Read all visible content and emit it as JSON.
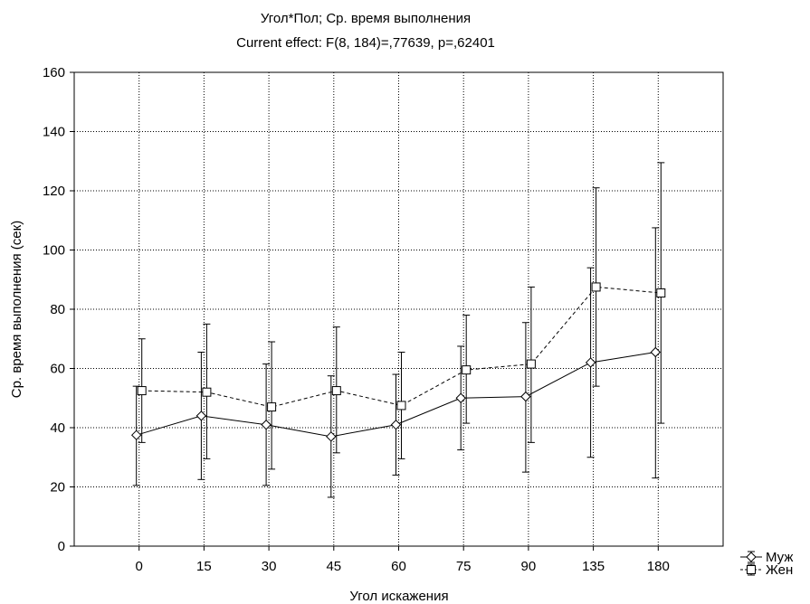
{
  "chart_data": {
    "type": "line",
    "title": "Угол*Пол; Ср. время выполнения",
    "subtitle": "Current effect: F(8, 184)=,77639, p=,62401",
    "xlabel": "Угол искажения",
    "ylabel": "Ср. время выполнения (сек)",
    "categories": [
      "0",
      "15",
      "30",
      "45",
      "60",
      "75",
      "90",
      "135",
      "180"
    ],
    "ylim": [
      0,
      160
    ],
    "yticks": [
      "0",
      "20",
      "40",
      "60",
      "80",
      "100",
      "120",
      "140",
      "160"
    ],
    "grid": true,
    "legend_position": "bottom-right",
    "series": [
      {
        "name": "Муж",
        "marker": "diamond",
        "line_style": "solid",
        "values": [
          37.5,
          44,
          41,
          37,
          41,
          50,
          50.5,
          62,
          65.5
        ],
        "lower": [
          20.5,
          22.5,
          20.5,
          16.5,
          24,
          32.5,
          25,
          30,
          23
        ],
        "upper": [
          54,
          65.5,
          61.5,
          57.5,
          58,
          67.5,
          75.5,
          94,
          107.5
        ]
      },
      {
        "name": "Жен",
        "marker": "square",
        "line_style": "dashed",
        "values": [
          52.5,
          52,
          47,
          52.5,
          47.5,
          59.5,
          61.5,
          87.5,
          85.5
        ],
        "lower": [
          35,
          29.5,
          26,
          31.5,
          29.5,
          41.5,
          35,
          54,
          41.5
        ],
        "upper": [
          70,
          75,
          69,
          74,
          65.5,
          78,
          87.5,
          121,
          129.5
        ]
      }
    ]
  }
}
